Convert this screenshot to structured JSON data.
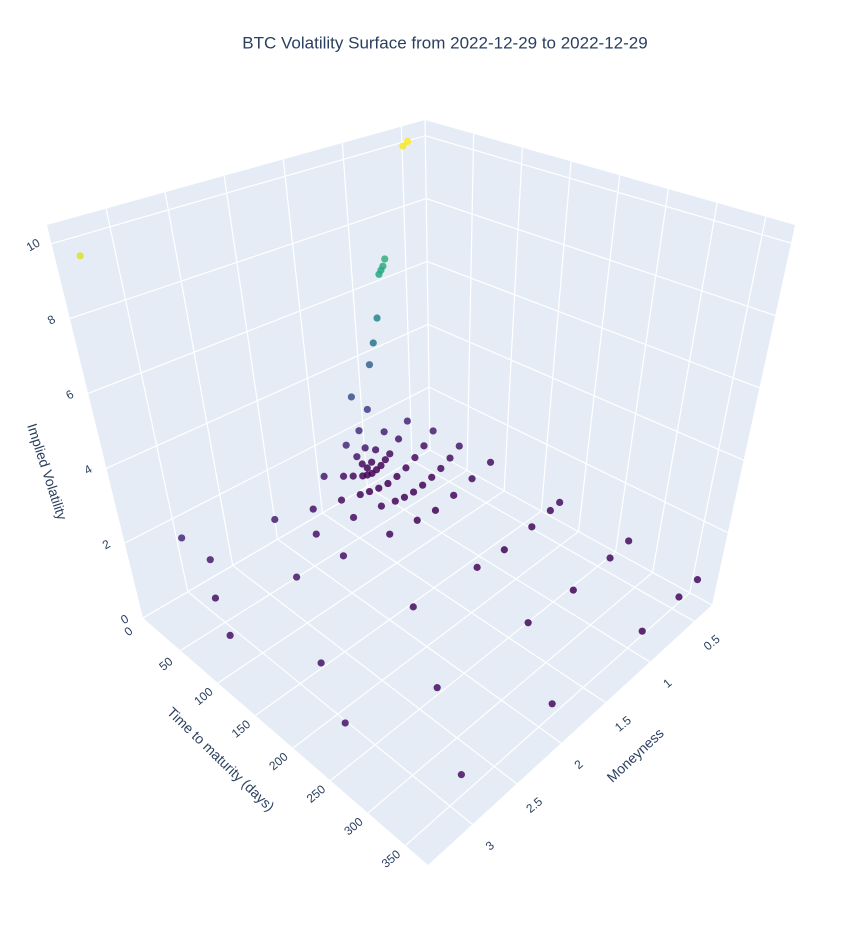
{
  "chart_data": {
    "type": "scatter3d",
    "title": "BTC Volatility Surface from 2022-12-29 to 2022-12-29",
    "x_label": "Moneyness",
    "y_label": "Time to maturity (days)",
    "z_label": "Implied Volatility",
    "colorscale": "Viridis",
    "xlim": [
      0.3,
      3.5
    ],
    "ylim": [
      0,
      380
    ],
    "zlim": [
      0,
      10.5
    ],
    "xticks": [
      0.5,
      1,
      1.5,
      2,
      2.5,
      3
    ],
    "yticks": [
      0,
      50,
      100,
      150,
      200,
      250,
      300,
      350
    ],
    "zticks": [
      0,
      2,
      4,
      6,
      8,
      10
    ],
    "x": [
      0.46,
      0.5,
      0.7,
      0.72,
      0.74,
      0.76,
      0.8,
      0.85,
      0.9,
      0.95,
      1.0,
      1.05,
      1.1,
      3.3,
      0.8,
      0.9,
      0.95,
      1.0,
      1.05,
      1.1,
      1.2,
      0.6,
      0.7,
      0.8,
      0.85,
      0.9,
      0.95,
      1.0,
      1.05,
      1.1,
      1.2,
      1.3,
      1.5,
      0.5,
      0.6,
      0.7,
      0.8,
      0.9,
      1.0,
      1.1,
      1.2,
      1.3,
      1.5,
      1.8,
      2.2,
      0.45,
      0.55,
      0.65,
      0.75,
      0.85,
      0.95,
      1.05,
      1.15,
      1.3,
      1.6,
      2.0,
      0.4,
      0.6,
      0.8,
      1.0,
      1.2,
      1.5,
      2.0,
      2.5,
      0.4,
      0.5,
      0.7,
      1.0,
      1.3,
      2.0,
      3.0,
      0.4,
      0.6,
      1.0,
      1.5,
      2.5,
      0.4,
      0.6,
      1.0,
      2.0,
      3.0,
      3.0,
      2.9,
      3.1,
      3.3,
      3.3
    ],
    "y": [
      1,
      1,
      1,
      1,
      1,
      1,
      1,
      1,
      1,
      1,
      1,
      1,
      1,
      1,
      2,
      2,
      2,
      2,
      2,
      2,
      2,
      8,
      8,
      8,
      8,
      8,
      8,
      8,
      8,
      8,
      8,
      8,
      8,
      29,
      29,
      29,
      29,
      29,
      29,
      29,
      29,
      29,
      29,
      29,
      29,
      57,
      57,
      57,
      57,
      57,
      57,
      57,
      57,
      57,
      57,
      57,
      92,
      92,
      92,
      92,
      92,
      92,
      92,
      92,
      183,
      183,
      183,
      183,
      183,
      183,
      183,
      274,
      274,
      274,
      274,
      274,
      365,
      365,
      365,
      365,
      365,
      8,
      29,
      57,
      100,
      250
    ],
    "z": [
      10.0,
      9.9,
      6.6,
      6.4,
      6.3,
      6.2,
      4.9,
      4.2,
      3.6,
      2.3,
      1.2,
      1.8,
      2.9,
      9.5,
      1.4,
      1.0,
      0.7,
      0.6,
      0.8,
      1.1,
      1.6,
      1.5,
      1.1,
      0.8,
      0.7,
      0.6,
      0.55,
      0.52,
      0.55,
      0.6,
      0.75,
      0.9,
      1.2,
      1.3,
      1.0,
      0.8,
      0.65,
      0.55,
      0.5,
      0.52,
      0.58,
      0.65,
      0.8,
      1.0,
      1.3,
      1.1,
      0.9,
      0.75,
      0.65,
      0.58,
      0.54,
      0.55,
      0.6,
      0.7,
      0.85,
      1.0,
      0.95,
      0.8,
      0.65,
      0.55,
      0.6,
      0.7,
      0.9,
      1.1,
      0.85,
      0.8,
      0.7,
      0.6,
      0.65,
      0.8,
      1.0,
      0.8,
      0.72,
      0.62,
      0.7,
      0.85,
      0.75,
      0.7,
      0.62,
      0.75,
      0.9,
      1.6,
      1.2,
      0.9,
      0.9,
      1.0
    ]
  }
}
